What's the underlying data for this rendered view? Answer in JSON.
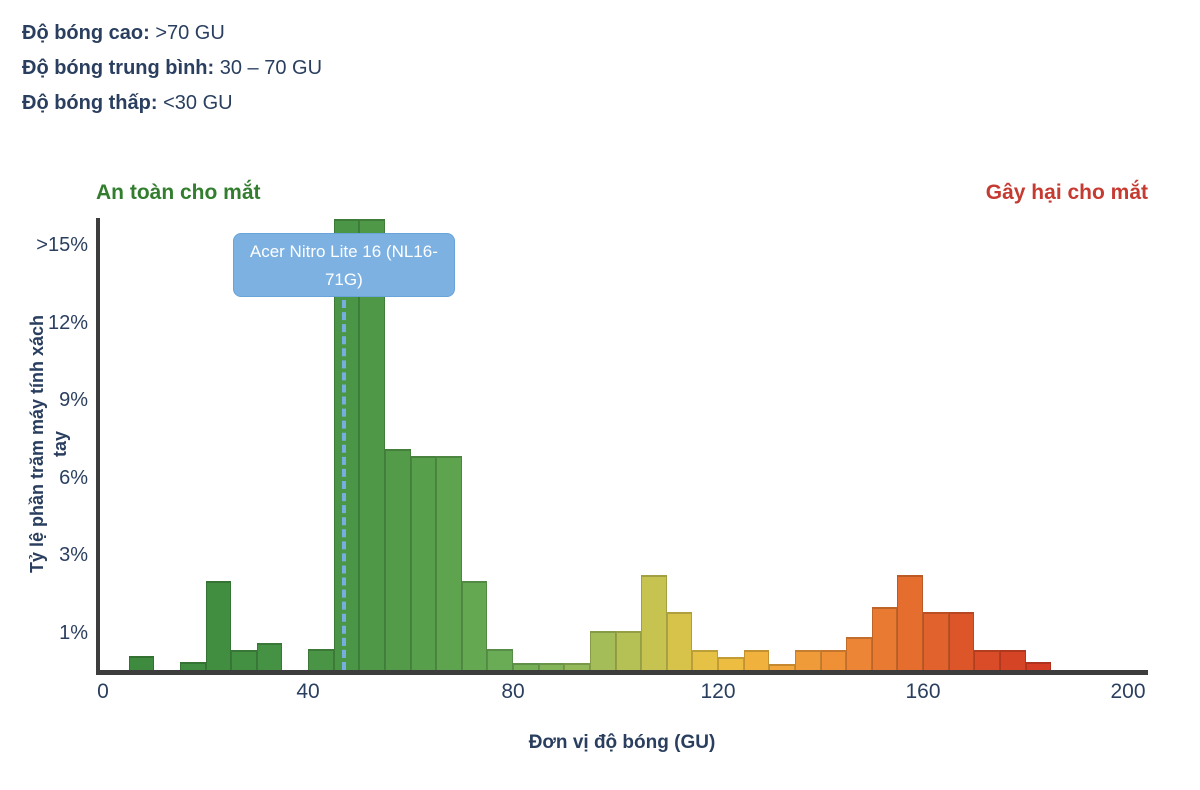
{
  "legend": {
    "lines": [
      {
        "label": "Độ bóng cao:",
        "value": " >70 GU"
      },
      {
        "label": "Độ bóng trung bình:",
        "value": " 30 – 70 GU"
      },
      {
        "label": "Độ bóng thấp:",
        "value": " <30 GU"
      }
    ]
  },
  "headings": {
    "left": "An toàn cho mắt",
    "right": "Gây hại cho mắt"
  },
  "tooltip": {
    "lines": [
      "Acer Nitro Lite 16 (NL16-",
      "71G)"
    ],
    "full_text": "Acer Nitro Lite 16 (NL16-71G)",
    "x_gu": 47
  },
  "colors": {
    "text_navy": "#2a3f5f",
    "heading_green": "#337d2e",
    "heading_red": "#c53a31",
    "axis_line": "#3d3d3d",
    "tooltip_fill": "#7cb1e2",
    "marker_dash": "#76afdf"
  },
  "chart_data": {
    "type": "bar",
    "subtype": "histogram",
    "title": "",
    "xlabel": "Đơn vị độ bóng (GU)",
    "ylabel": "Tỷ lệ phần trăm máy tính xách tay",
    "ylabel_lines": [
      "Tỷ lệ phần trăm máy tính xách",
      "tay"
    ],
    "x_ticks": [
      0,
      40,
      80,
      120,
      160,
      200
    ],
    "y_ticks": [
      ">15%",
      "12%",
      "9%",
      "6%",
      "3%",
      "1%"
    ],
    "y_tick_values": [
      15,
      12,
      9,
      6,
      3,
      1
    ],
    "xlim": [
      0,
      204
    ],
    "ylim_pct": [
      0,
      15
    ],
    "grid": false,
    "legend_position": "none",
    "bin_width_gu": 5,
    "bins": [
      {
        "start": 5,
        "pct": 0.37,
        "color": "#3e8a3e"
      },
      {
        "start": 15,
        "pct": 0.21,
        "color": "#408c40"
      },
      {
        "start": 20,
        "pct": 2.33,
        "color": "#428e41"
      },
      {
        "start": 25,
        "pct": 0.53,
        "color": "#449043"
      },
      {
        "start": 30,
        "pct": 0.72,
        "color": "#469245"
      },
      {
        "start": 40,
        "pct": 0.56,
        "color": "#499445"
      },
      {
        "start": 45,
        "pct": 16,
        "color": "#4b9646"
      },
      {
        "start": 50,
        "pct": 16,
        "color": "#4e9847"
      },
      {
        "start": 55,
        "pct": 7.1,
        "color": "#539b49"
      },
      {
        "start": 60,
        "pct": 6.83,
        "color": "#589f4c"
      },
      {
        "start": 65,
        "pct": 6.83,
        "color": "#5ea44f"
      },
      {
        "start": 70,
        "pct": 2.33,
        "color": "#64a852"
      },
      {
        "start": 75,
        "pct": 0.56,
        "color": "#6aac55"
      },
      {
        "start": 80,
        "pct": 0.19,
        "color": "#75b057"
      },
      {
        "start": 85,
        "pct": 0.19,
        "color": "#83b459"
      },
      {
        "start": 90,
        "pct": 0.19,
        "color": "#93b95a"
      },
      {
        "start": 95,
        "pct": 1.04,
        "color": "#a4bd58"
      },
      {
        "start": 100,
        "pct": 1.04,
        "color": "#b5c154"
      },
      {
        "start": 105,
        "pct": 2.48,
        "color": "#c6c350"
      },
      {
        "start": 110,
        "pct": 1.53,
        "color": "#d7c34a"
      },
      {
        "start": 115,
        "pct": 0.53,
        "color": "#e5c245"
      },
      {
        "start": 120,
        "pct": 0.35,
        "color": "#edbd41"
      },
      {
        "start": 125,
        "pct": 0.53,
        "color": "#f0b23d"
      },
      {
        "start": 130,
        "pct": 0.16,
        "color": "#f1a73b"
      },
      {
        "start": 135,
        "pct": 0.53,
        "color": "#f09b39"
      },
      {
        "start": 140,
        "pct": 0.53,
        "color": "#ef9037"
      },
      {
        "start": 145,
        "pct": 0.88,
        "color": "#ec8535"
      },
      {
        "start": 150,
        "pct": 1.66,
        "color": "#e97a32"
      },
      {
        "start": 155,
        "pct": 2.48,
        "color": "#e56e2f"
      },
      {
        "start": 160,
        "pct": 1.53,
        "color": "#e1622c"
      },
      {
        "start": 165,
        "pct": 1.53,
        "color": "#dd562a"
      },
      {
        "start": 170,
        "pct": 0.53,
        "color": "#d94c27"
      },
      {
        "start": 175,
        "pct": 0.53,
        "color": "#d64426"
      },
      {
        "start": 180,
        "pct": 0.21,
        "color": "#d43d24"
      }
    ]
  }
}
